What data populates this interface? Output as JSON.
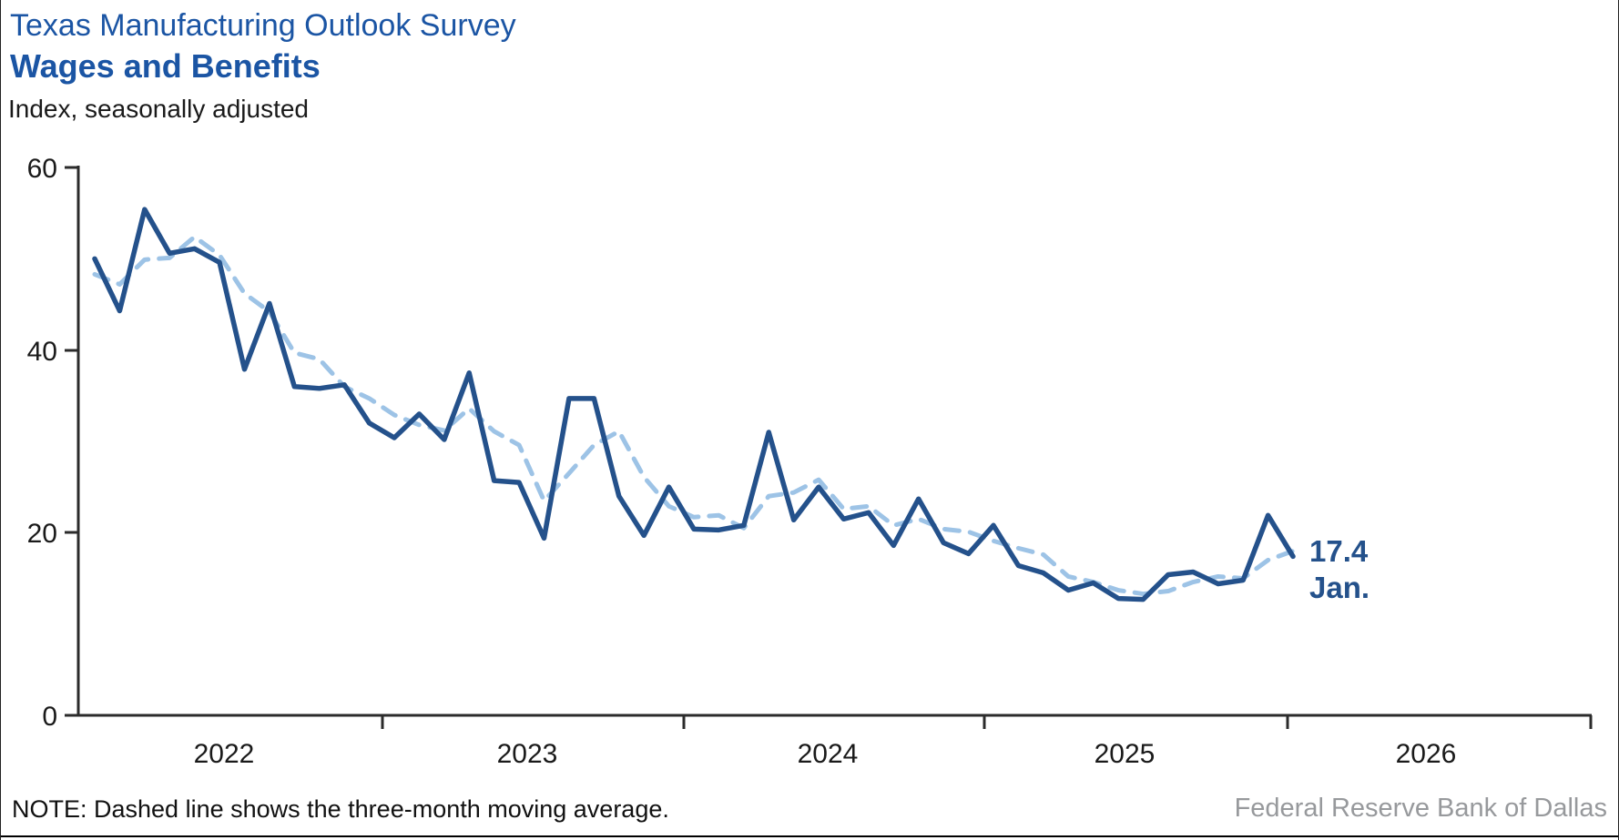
{
  "header": {
    "title": "Texas Manufacturing Outlook Survey",
    "subtitle": "Wages and Benefits",
    "axis_note": "Index, seasonally adjusted"
  },
  "footer": {
    "note": "NOTE: Dashed line shows the three-month moving average.",
    "source": "Federal Reserve Bank of Dallas"
  },
  "annotation": {
    "value": "17.4",
    "month": "Jan."
  },
  "colors": {
    "title_blue": "#1B55A4",
    "line_navy": "#24518B",
    "moving_average_blue": "#9DC3E6",
    "axis": "#2B2B2B",
    "source_gray": "#97999C"
  },
  "chart_data": {
    "type": "line",
    "title": "Texas Manufacturing Outlook Survey — Wages and Benefits",
    "ylabel": "Index, seasonally adjusted",
    "ylim": [
      0,
      60
    ],
    "yticks": [
      60,
      40,
      20,
      0
    ],
    "ytick_labels": [
      "60",
      "40",
      "20",
      "0"
    ],
    "xtick_labels": [
      "2022",
      "2023",
      "2024",
      "2025",
      "2026"
    ],
    "x_start": "2022-01",
    "x_end": "2026-01",
    "frequency": "monthly",
    "grid": false,
    "legend": "none (explained in note)",
    "series": [
      {
        "name": "Wages and Benefits index",
        "style": "solid",
        "values": [
          50.0,
          44.3,
          55.4,
          50.6,
          51.1,
          49.6,
          37.9,
          45.1,
          36.0,
          35.8,
          36.2,
          32.0,
          30.4,
          33.0,
          30.2,
          37.5,
          25.7,
          25.5,
          19.4,
          34.7,
          34.7,
          24.0,
          19.7,
          25.0,
          20.4,
          20.3,
          20.8,
          31.0,
          21.4,
          25.0,
          21.5,
          22.2,
          18.6,
          23.7,
          18.9,
          17.7,
          20.8,
          16.4,
          15.6,
          13.7,
          14.5,
          12.8,
          12.7,
          15.4,
          15.7,
          14.4,
          14.8,
          21.9,
          17.4
        ]
      },
      {
        "name": "Three-month moving average",
        "style": "dashed",
        "values": [
          48.3,
          47.2,
          49.9,
          50.1,
          52.4,
          50.4,
          46.2,
          44.2,
          39.7,
          39.0,
          36.0,
          34.7,
          32.9,
          31.8,
          31.2,
          33.6,
          31.1,
          29.6,
          23.5,
          26.5,
          29.6,
          31.1,
          26.1,
          22.9,
          21.7,
          21.9,
          20.5,
          24.0,
          24.4,
          25.8,
          22.6,
          22.9,
          20.8,
          21.5,
          20.4,
          20.1,
          19.1,
          18.3,
          17.6,
          15.2,
          14.6,
          13.7,
          13.3,
          13.6,
          14.6,
          15.2,
          15.0,
          17.0,
          18.0
        ]
      }
    ],
    "last_point": {
      "value": 17.4,
      "label": "17.4",
      "month": "Jan."
    }
  }
}
